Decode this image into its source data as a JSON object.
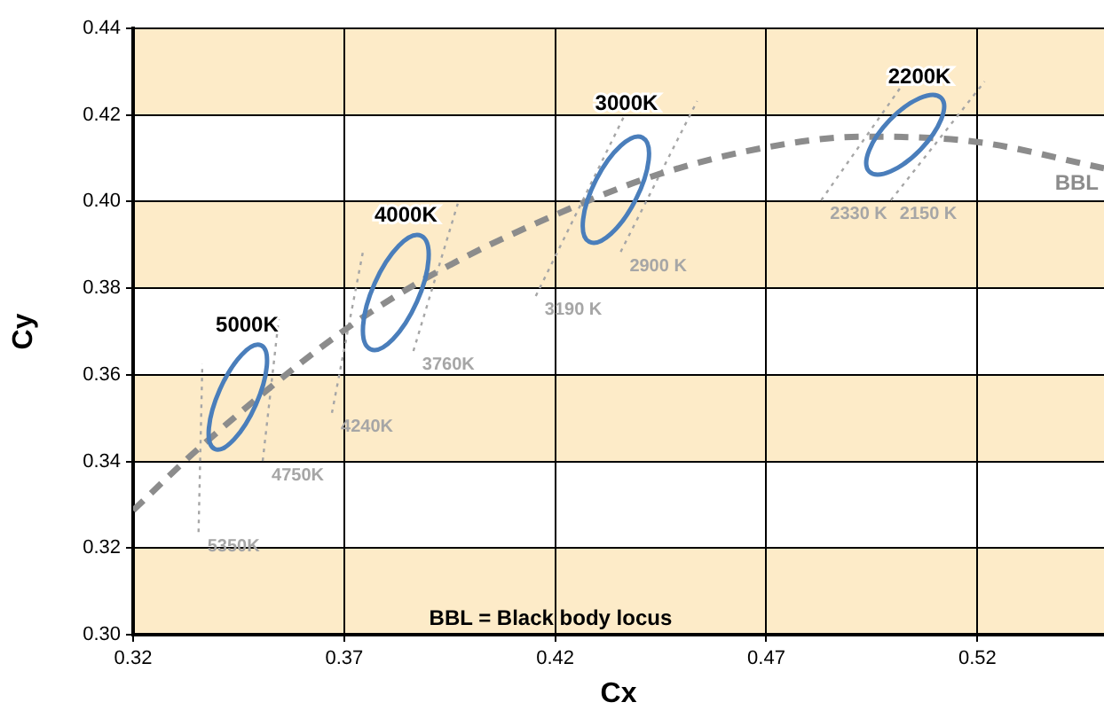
{
  "chart_data": {
    "type": "line",
    "xlabel": "Cx",
    "ylabel": "Cy",
    "xlim": [
      0.32,
      0.55
    ],
    "xticks": [
      0.32,
      0.37,
      0.42,
      0.47,
      0.52
    ],
    "ylim": [
      0.3,
      0.44
    ],
    "yticks": [
      {
        "value": 0.3,
        "label": "0.30"
      },
      0.32,
      0.34,
      0.36,
      0.38,
      {
        "value": 0.4,
        "label": "0.40"
      },
      0.42,
      0.44
    ],
    "grid": true,
    "legend": false,
    "marker": "none",
    "bands": [
      {
        "axis": "y",
        "from": 0.3,
        "to": 0.32,
        "color": "#fdebc8"
      },
      {
        "axis": "y",
        "from": 0.34,
        "to": 0.36,
        "color": "#fdebc8"
      },
      {
        "axis": "y",
        "from": 0.38,
        "to": 0.4,
        "color": "#fdebc8"
      },
      {
        "axis": "y",
        "from": 0.42,
        "to": 0.44,
        "color": "#fdebc8"
      }
    ],
    "series": [
      {
        "name": "BBL",
        "color": "#8c8c8c",
        "line_style": "dashed",
        "x": [
          0.32,
          0.336,
          0.3696,
          0.3923,
          0.423,
          0.4448,
          0.4704,
          0.4931,
          0.5196,
          0.55
        ],
        "values": [
          0.3287,
          0.3434,
          0.37,
          0.3839,
          0.3982,
          0.4064,
          0.4126,
          0.415,
          0.4138,
          0.4077
        ]
      },
      {
        "name": "5350K",
        "color": "#a6a6a6",
        "line_style": "dotted",
        "x": [
          0.3355,
          0.3364
        ],
        "values": [
          0.3237,
          0.3626
        ]
      },
      {
        "name": "4750K",
        "color": "#a6a6a6",
        "line_style": "dotted",
        "x": [
          0.3507,
          0.3545
        ],
        "values": [
          0.3401,
          0.3729
        ]
      },
      {
        "name": "4240K",
        "color": "#a6a6a6",
        "line_style": "dotted",
        "x": [
          0.3671,
          0.3746
        ],
        "values": [
          0.3512,
          0.3892
        ]
      },
      {
        "name": "3760K",
        "color": "#a6a6a6",
        "line_style": "dotted",
        "x": [
          0.3864,
          0.3969
        ],
        "values": [
          0.3655,
          0.3995
        ]
      },
      {
        "name": "3190 K",
        "color": "#a6a6a6",
        "line_style": "dotted",
        "x": [
          0.4154,
          0.4364
        ],
        "values": [
          0.3782,
          0.4199
        ]
      },
      {
        "name": "2900 K",
        "color": "#a6a6a6",
        "line_style": "dotted",
        "x": [
          0.4355,
          0.4536
        ],
        "values": [
          0.3884,
          0.4232
        ]
      },
      {
        "name": "2330 K",
        "color": "#a6a6a6",
        "line_style": "dotted",
        "x": [
          0.483,
          0.504
        ],
        "values": [
          0.4003,
          0.4294
        ]
      },
      {
        "name": "2150 K",
        "color": "#a6a6a6",
        "line_style": "dotted",
        "x": [
          0.4995,
          0.5217
        ],
        "values": [
          0.4003,
          0.4277
        ]
      }
    ],
    "annotations": [
      "5000K",
      "4000K",
      "3000K",
      "2200K",
      "BBL = Black body locus"
    ]
  }
}
